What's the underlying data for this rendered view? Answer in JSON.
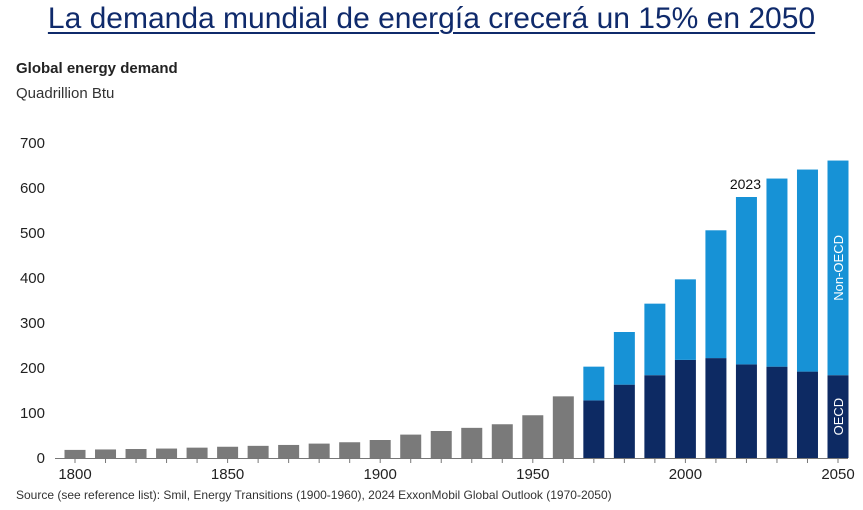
{
  "headline": "La demanda mundial de energía crecerá un 15% en 2050",
  "source": "Source (see reference list): Smil, Energy Transitions (1900-1960), 2024 ExxonMobil Global Outlook (1970-2050)",
  "colors": {
    "historical": "#7a7a7a",
    "oecd": "#0d2a63",
    "non_oecd": "#1792d6",
    "headline": "#0f2a6b"
  },
  "chart_data": {
    "type": "bar",
    "stacked": true,
    "title": "Global energy demand",
    "subtitle": "Quadrillion Btu",
    "xlabel": "",
    "ylabel": "",
    "ylim": [
      0,
      700
    ],
    "xlim": [
      1800,
      2050
    ],
    "yticks": [
      0,
      100,
      200,
      300,
      400,
      500,
      600,
      700
    ],
    "xticks": [
      1800,
      1850,
      1900,
      1950,
      2000,
      2050
    ],
    "grid": false,
    "annotation": "2023",
    "annotation_year": 2020,
    "historical": {
      "x": [
        1800,
        1810,
        1820,
        1830,
        1840,
        1850,
        1860,
        1870,
        1880,
        1890,
        1900,
        1910,
        1920,
        1930,
        1940,
        1950,
        1960
      ],
      "values": [
        18,
        19,
        20,
        21,
        23,
        25,
        27,
        29,
        32,
        35,
        40,
        52,
        60,
        67,
        75,
        95,
        137
      ]
    },
    "x": [
      1970,
      1980,
      1990,
      2000,
      2010,
      2020,
      2030,
      2040,
      2050
    ],
    "series": [
      {
        "name": "OECD",
        "values": [
          128,
          163,
          184,
          218,
          222,
          208,
          203,
          192,
          184
        ]
      },
      {
        "name": "Non-OECD",
        "values": [
          75,
          117,
          159,
          179,
          284,
          372,
          418,
          449,
          477
        ]
      }
    ]
  }
}
